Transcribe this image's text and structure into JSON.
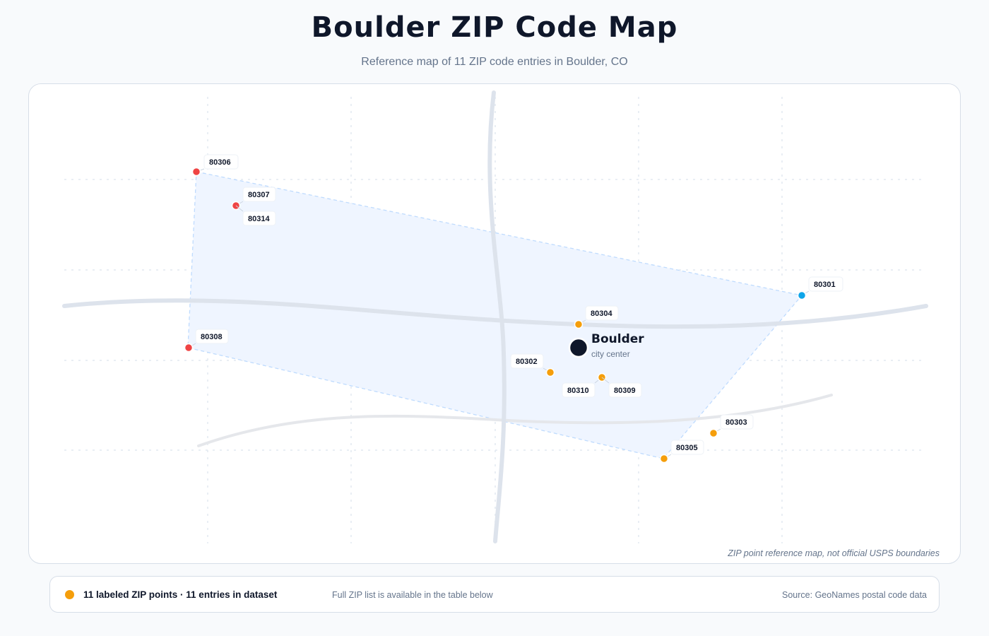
{
  "title": "Boulder ZIP Code Map",
  "subtitle": "Reference map of 11 ZIP code entries in Boulder, CO",
  "map": {
    "city": {
      "name": "Boulder",
      "caption": "city center"
    },
    "disclaimer": "ZIP point reference map, not official USPS boundaries",
    "zip_points": [
      {
        "zip": "80306",
        "color": "#ef4444"
      },
      {
        "zip": "80307",
        "color": "#ef4444"
      },
      {
        "zip": "80314",
        "color": "#ef4444"
      },
      {
        "zip": "80308",
        "color": "#ef4444"
      },
      {
        "zip": "80301",
        "color": "#0ea5e9"
      },
      {
        "zip": "80304",
        "color": "#f59e0b"
      },
      {
        "zip": "80302",
        "color": "#f59e0b"
      },
      {
        "zip": "80310",
        "color": "#f59e0b"
      },
      {
        "zip": "80309",
        "color": "#f59e0b"
      },
      {
        "zip": "80303",
        "color": "#f59e0b"
      },
      {
        "zip": "80305",
        "color": "#f59e0b"
      }
    ],
    "colors": {
      "primary": "#f59e0b",
      "west": "#ef4444",
      "east": "#0ea5e9",
      "center": "#0f172a"
    }
  },
  "legend": {
    "count_text": "11 labeled ZIP points · 11 entries in dataset",
    "note": "Full ZIP list is available in the table below",
    "source": "Source: GeoNames postal code data"
  }
}
